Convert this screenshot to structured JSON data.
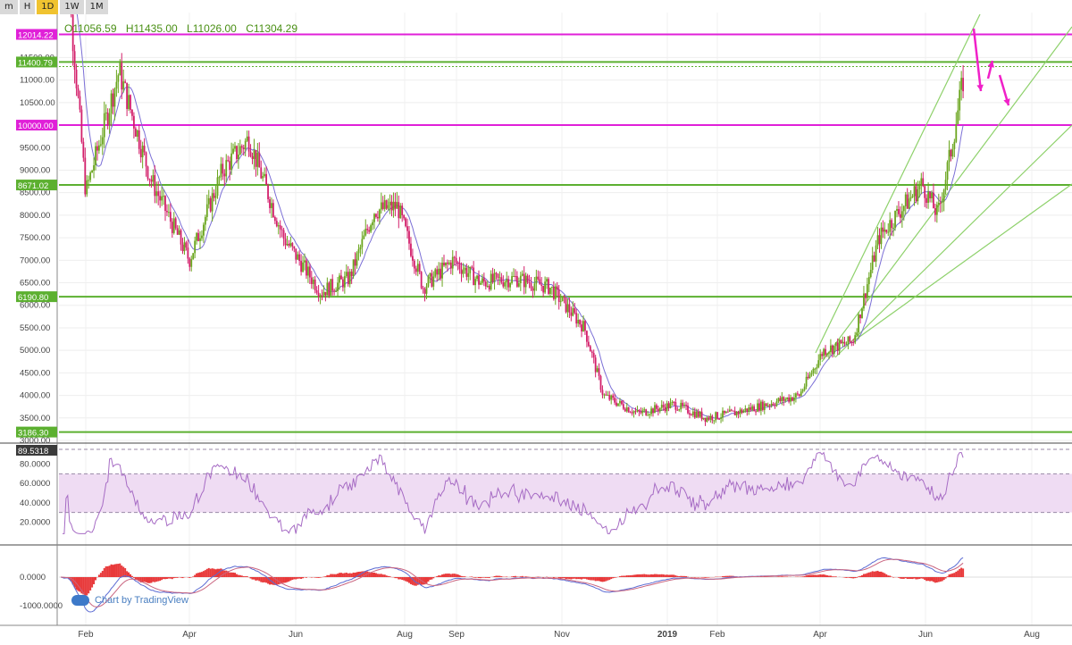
{
  "toolbar": {
    "items": [
      "m",
      "H",
      "1D",
      "1W",
      "1M"
    ],
    "active": "1D"
  },
  "header": {
    "ohlc": {
      "o": "O11056.59",
      "h": "H11435.00",
      "l": "L11026.00",
      "c": "C11304.29"
    }
  },
  "watermark": "Chart by TradingView",
  "colors": {
    "up": "#6aa51e",
    "down": "#d3206b",
    "ma": "#7b6fd6",
    "green_line": "#5cb030",
    "magenta_line": "#e020d8",
    "rsi_line": "#a66bc4",
    "rsi_band": "#efdcf3",
    "macd_hist": "#e8393a",
    "macd_line": "#5b6bd3",
    "signal_line": "#c9647f",
    "arrow": "#f020c8"
  },
  "chart_data": [
    {
      "type": "candlestick",
      "panel": "price",
      "ylim": [
        3000,
        12500
      ],
      "y_ticks": [
        "3000.00",
        "3500.00",
        "4000.00",
        "4500.00",
        "5000.00",
        "5500.00",
        "6000.00",
        "6500.00",
        "7000.00",
        "7500.00",
        "8000.00",
        "8500.00",
        "9000.00",
        "9500.00",
        "10000.00",
        "10500.00",
        "11000.00",
        "11500.00"
      ],
      "x_ticks": [
        "Feb",
        "Apr",
        "Jun",
        "Aug",
        "Sep",
        "Nov",
        "2019",
        "Feb",
        "Apr",
        "Jun",
        "Aug"
      ],
      "x": [
        "2018-01-15",
        "2018-02-01",
        "2018-02-20",
        "2018-03-10",
        "2018-04-01",
        "2018-04-20",
        "2018-05-05",
        "2018-05-25",
        "2018-06-15",
        "2018-07-01",
        "2018-07-15",
        "2018-07-28",
        "2018-08-12",
        "2018-08-30",
        "2018-09-15",
        "2018-10-05",
        "2018-10-25",
        "2018-11-14",
        "2018-11-25",
        "2018-12-15",
        "2019-01-05",
        "2019-01-25",
        "2019-02-10",
        "2019-03-01",
        "2019-03-20",
        "2019-04-03",
        "2019-04-20",
        "2019-05-05",
        "2019-05-15",
        "2019-05-30",
        "2019-06-08",
        "2019-06-15",
        "2019-06-20",
        "2019-06-24"
      ],
      "close": [
        13500,
        8500,
        11200,
        8800,
        7000,
        9000,
        9700,
        7500,
        6300,
        6600,
        8100,
        8200,
        6400,
        7000,
        6500,
        6600,
        6400,
        5500,
        4000,
        3600,
        3800,
        3500,
        3600,
        3800,
        4000,
        5000,
        5200,
        7500,
        8000,
        8700,
        8000,
        9300,
        10400,
        11304
      ],
      "horizontal_levels": [
        {
          "label": "12014.22",
          "value": 12014.22,
          "color": "magenta"
        },
        {
          "label": "11400.79",
          "value": 11400.79,
          "color": "green"
        },
        {
          "label": "10000.00",
          "value": 10000.0,
          "color": "magenta"
        },
        {
          "label": "8671.02",
          "value": 8671.02,
          "color": "green"
        },
        {
          "label": "6190.80",
          "value": 6190.8,
          "color": "green"
        },
        {
          "label": "3186.30",
          "value": 3186.3,
          "color": "green"
        }
      ],
      "annotations": [
        "trendlines",
        "arrows down-up-down"
      ]
    },
    {
      "type": "line",
      "panel": "rsi",
      "name": "RSI",
      "ylim": [
        0,
        100
      ],
      "y_ticks": [
        "20.0000",
        "40.0000",
        "60.0000",
        "80.0000"
      ],
      "last_label": "89.5318",
      "band": [
        30,
        70
      ]
    },
    {
      "type": "histogram",
      "panel": "macd",
      "y_ticks": [
        "0.0000",
        "-1000.0000"
      ]
    }
  ]
}
